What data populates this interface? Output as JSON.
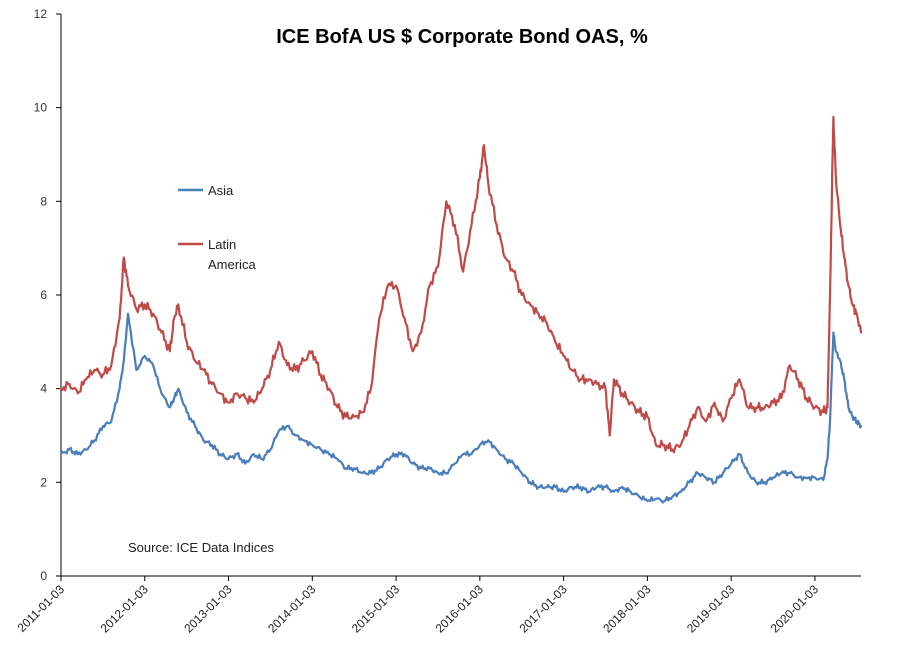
{
  "chart_data": {
    "type": "line",
    "title": "ICE BofA US $ Corporate Bond OAS, %",
    "source": "Source: ICE Data Indices",
    "xlabel": "",
    "ylabel": "",
    "ylim": [
      0,
      12
    ],
    "yticks": [
      "0",
      "2",
      "4",
      "6",
      "8",
      "10",
      "12"
    ],
    "xlim": [
      2011.0,
      2020.55
    ],
    "xticks": [
      {
        "label": "2011-01-03",
        "t": 2011.0
      },
      {
        "label": "2012-01-03",
        "t": 2012.0
      },
      {
        "label": "2013-01-03",
        "t": 2013.0
      },
      {
        "label": "2014-01-03",
        "t": 2014.0
      },
      {
        "label": "2015-01-03",
        "t": 2015.0
      },
      {
        "label": "2016-01-03",
        "t": 2016.0
      },
      {
        "label": "2017-01-03",
        "t": 2017.0
      },
      {
        "label": "2018-01-03",
        "t": 2018.0
      },
      {
        "label": "2019-01-03",
        "t": 2019.0
      },
      {
        "label": "2020-01-03",
        "t": 2020.0
      }
    ],
    "grid": false,
    "legend_position": "upper-left",
    "series": [
      {
        "name": "Asia",
        "legend_lines": [
          "Asia"
        ],
        "color": "#4A7EBB",
        "x": [
          2011.0,
          2011.1,
          2011.2,
          2011.3,
          2011.4,
          2011.5,
          2011.6,
          2011.7,
          2011.75,
          2011.8,
          2011.9,
          2012.0,
          2012.1,
          2012.2,
          2012.3,
          2012.35,
          2012.4,
          2012.5,
          2012.6,
          2012.7,
          2012.8,
          2012.9,
          2013.0,
          2013.1,
          2013.2,
          2013.3,
          2013.4,
          2013.5,
          2013.6,
          2013.7,
          2013.8,
          2013.9,
          2014.0,
          2014.1,
          2014.2,
          2014.3,
          2014.4,
          2014.5,
          2014.6,
          2014.7,
          2014.8,
          2014.9,
          2015.0,
          2015.1,
          2015.2,
          2015.3,
          2015.4,
          2015.5,
          2015.6,
          2015.7,
          2015.8,
          2015.9,
          2016.0,
          2016.1,
          2016.2,
          2016.3,
          2016.4,
          2016.5,
          2016.6,
          2016.7,
          2016.8,
          2016.9,
          2017.0,
          2017.1,
          2017.2,
          2017.3,
          2017.4,
          2017.5,
          2017.6,
          2017.7,
          2017.8,
          2017.9,
          2018.0,
          2018.1,
          2018.2,
          2018.3,
          2018.4,
          2018.5,
          2018.6,
          2018.7,
          2018.8,
          2018.9,
          2019.0,
          2019.1,
          2019.2,
          2019.3,
          2019.4,
          2019.5,
          2019.6,
          2019.7,
          2019.8,
          2019.9,
          2020.0,
          2020.1,
          2020.15,
          2020.18,
          2020.22,
          2020.25,
          2020.3,
          2020.35,
          2020.4,
          2020.45,
          2020.5,
          2020.55
        ],
        "values": [
          2.6,
          2.7,
          2.6,
          2.7,
          2.9,
          3.2,
          3.3,
          4.0,
          4.6,
          5.6,
          4.4,
          4.7,
          4.5,
          3.9,
          3.6,
          3.8,
          4.0,
          3.5,
          3.2,
          2.9,
          2.8,
          2.6,
          2.5,
          2.6,
          2.4,
          2.6,
          2.5,
          2.7,
          3.1,
          3.2,
          3.0,
          2.9,
          2.8,
          2.7,
          2.6,
          2.5,
          2.3,
          2.3,
          2.2,
          2.2,
          2.3,
          2.5,
          2.6,
          2.6,
          2.4,
          2.3,
          2.3,
          2.2,
          2.2,
          2.4,
          2.6,
          2.6,
          2.8,
          2.9,
          2.7,
          2.5,
          2.4,
          2.2,
          2.0,
          1.9,
          1.9,
          1.9,
          1.8,
          1.9,
          1.9,
          1.8,
          1.9,
          1.9,
          1.8,
          1.9,
          1.8,
          1.7,
          1.6,
          1.65,
          1.6,
          1.7,
          1.8,
          2.0,
          2.2,
          2.1,
          2.0,
          2.2,
          2.4,
          2.6,
          2.2,
          2.0,
          2.0,
          2.1,
          2.2,
          2.2,
          2.1,
          2.1,
          2.1,
          2.05,
          2.5,
          3.3,
          5.2,
          4.8,
          4.6,
          4.2,
          3.6,
          3.4,
          3.3,
          3.2
        ]
      },
      {
        "name": "Latin America",
        "legend_lines": [
          "Latin",
          "America"
        ],
        "color": "#BE4B48",
        "x": [
          2011.0,
          2011.1,
          2011.2,
          2011.3,
          2011.4,
          2011.5,
          2011.6,
          2011.7,
          2011.75,
          2011.8,
          2011.9,
          2012.0,
          2012.1,
          2012.2,
          2012.3,
          2012.35,
          2012.4,
          2012.5,
          2012.6,
          2012.7,
          2012.8,
          2012.9,
          2013.0,
          2013.1,
          2013.2,
          2013.3,
          2013.4,
          2013.5,
          2013.6,
          2013.7,
          2013.8,
          2013.9,
          2014.0,
          2014.1,
          2014.2,
          2014.3,
          2014.4,
          2014.5,
          2014.6,
          2014.7,
          2014.8,
          2014.9,
          2015.0,
          2015.1,
          2015.2,
          2015.3,
          2015.4,
          2015.5,
          2015.6,
          2015.7,
          2015.8,
          2015.9,
          2016.0,
          2016.05,
          2016.1,
          2016.2,
          2016.3,
          2016.4,
          2016.5,
          2016.6,
          2016.7,
          2016.8,
          2016.9,
          2017.0,
          2017.1,
          2017.2,
          2017.3,
          2017.4,
          2017.5,
          2017.55,
          2017.6,
          2017.7,
          2017.8,
          2017.9,
          2018.0,
          2018.1,
          2018.2,
          2018.3,
          2018.4,
          2018.5,
          2018.6,
          2018.7,
          2018.8,
          2018.9,
          2019.0,
          2019.1,
          2019.2,
          2019.3,
          2019.4,
          2019.5,
          2019.6,
          2019.7,
          2019.8,
          2019.9,
          2020.0,
          2020.1,
          2020.15,
          2020.18,
          2020.22,
          2020.25,
          2020.3,
          2020.35,
          2020.4,
          2020.45,
          2020.5,
          2020.55
        ],
        "values": [
          4.0,
          4.1,
          3.9,
          4.2,
          4.4,
          4.3,
          4.5,
          5.5,
          6.8,
          6.2,
          5.7,
          5.8,
          5.6,
          5.2,
          4.8,
          5.5,
          5.8,
          5.0,
          4.6,
          4.4,
          4.1,
          3.9,
          3.7,
          3.9,
          3.8,
          3.7,
          4.0,
          4.4,
          5.0,
          4.5,
          4.4,
          4.6,
          4.8,
          4.3,
          4.0,
          3.6,
          3.4,
          3.4,
          3.5,
          4.0,
          5.5,
          6.2,
          6.2,
          5.5,
          4.8,
          5.2,
          6.2,
          6.6,
          8.0,
          7.5,
          6.5,
          7.5,
          8.5,
          9.2,
          8.4,
          7.5,
          6.8,
          6.5,
          6.0,
          5.8,
          5.6,
          5.4,
          5.0,
          4.7,
          4.4,
          4.2,
          4.2,
          4.1,
          4.0,
          3.0,
          4.2,
          3.9,
          3.7,
          3.5,
          3.4,
          2.8,
          2.8,
          2.7,
          2.8,
          3.2,
          3.6,
          3.3,
          3.7,
          3.3,
          3.8,
          4.2,
          3.6,
          3.6,
          3.6,
          3.7,
          3.8,
          4.5,
          4.2,
          3.8,
          3.6,
          3.5,
          3.6,
          6.0,
          9.8,
          8.5,
          7.5,
          6.8,
          6.2,
          5.8,
          5.6,
          5.2
        ]
      }
    ]
  }
}
